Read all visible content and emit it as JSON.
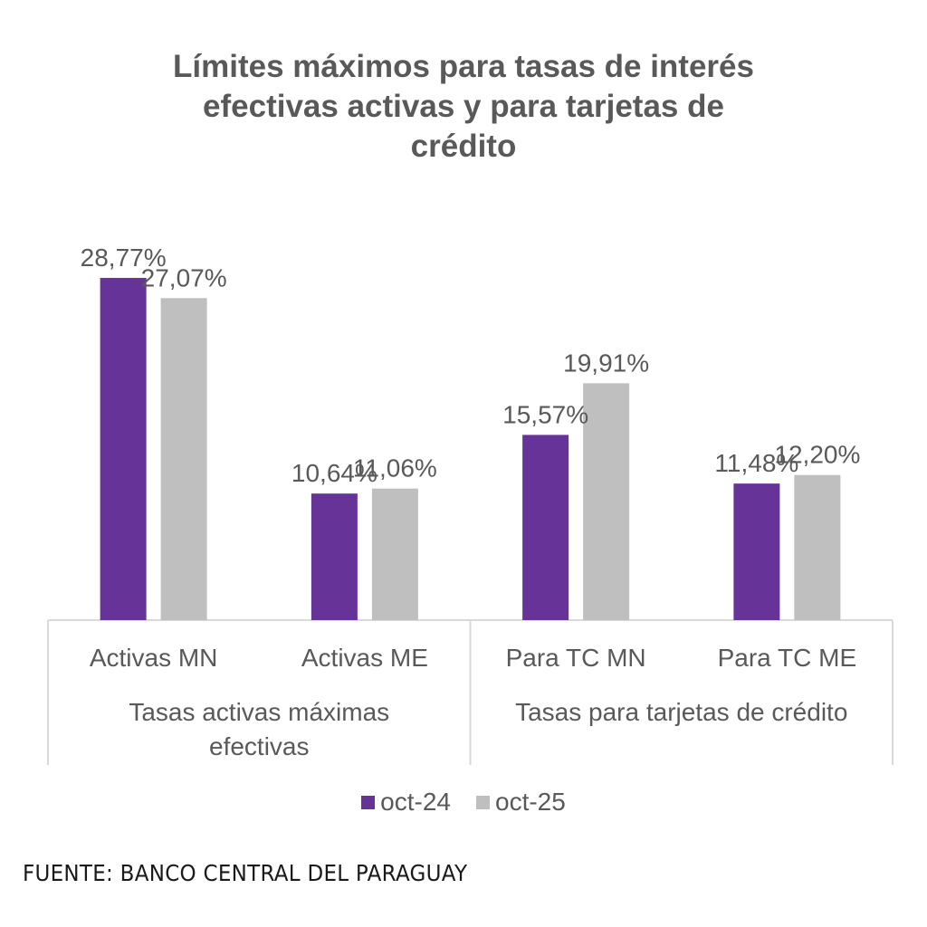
{
  "title_lines": [
    "Límites máximos para tasas de interés",
    "efectivas activas y para tarjetas de",
    "crédito"
  ],
  "source": "FUENTE: BANCO CENTRAL DEL PARAGUAY",
  "colors": {
    "oct-24": "#663399",
    "oct-25": "#BFBFBF",
    "text": "#595959",
    "axis": "#D9D9D9"
  },
  "chart_data": {
    "type": "bar",
    "title": "Límites máximos para tasas de interés efectivas activas y para tarjetas de crédito",
    "categories": [
      "Activas MN",
      "Activas ME",
      "Para TC MN",
      "Para TC ME"
    ],
    "category_groups": [
      {
        "label_lines": [
          "Tasas activas máximas",
          "efectivas"
        ],
        "categories": [
          "Activas MN",
          "Activas ME"
        ]
      },
      {
        "label_lines": [
          "Tasas para tarjetas de crédito"
        ],
        "categories": [
          "Para TC MN",
          "Para TC ME"
        ]
      }
    ],
    "series": [
      {
        "name": "oct-24",
        "values": [
          28.77,
          10.64,
          15.57,
          11.48
        ],
        "labels": [
          "28,77%",
          "10,64%",
          "15,57%",
          "11,48%"
        ]
      },
      {
        "name": "oct-25",
        "values": [
          27.07,
          11.06,
          19.91,
          12.2
        ],
        "labels": [
          "27,07%",
          "11,06%",
          "19,91%",
          "12,20%"
        ]
      }
    ],
    "xlabel": "",
    "ylabel": "",
    "ylim": [
      0,
      30
    ],
    "grid": false,
    "y_axis_visible": false,
    "legend": {
      "position": "bottom",
      "entries": [
        "oct-24",
        "oct-25"
      ]
    }
  }
}
